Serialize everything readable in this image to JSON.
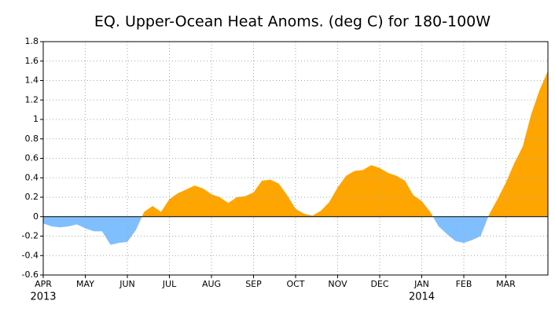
{
  "chart_data": {
    "type": "area",
    "title": "EQ. Upper-Ocean Heat Anoms. (deg C) for 180-100W",
    "x": [
      0,
      0.2,
      0.4,
      0.6,
      0.8,
      1.0,
      1.2,
      1.4,
      1.6,
      1.8,
      2.0,
      2.2,
      2.4,
      2.6,
      2.8,
      3.0,
      3.2,
      3.4,
      3.6,
      3.8,
      4.0,
      4.2,
      4.4,
      4.6,
      4.8,
      5.0,
      5.2,
      5.4,
      5.6,
      5.8,
      6.0,
      6.2,
      6.4,
      6.6,
      6.8,
      7.0,
      7.2,
      7.4,
      7.6,
      7.8,
      8.0,
      8.2,
      8.4,
      8.6,
      8.8,
      9.0,
      9.2,
      9.4,
      9.6,
      9.8,
      10.0,
      10.2,
      10.4,
      10.6,
      10.8,
      11.0,
      11.2,
      11.4,
      11.6,
      11.8,
      12.0
    ],
    "values": [
      -0.07,
      -0.1,
      -0.11,
      -0.1,
      -0.08,
      -0.12,
      -0.15,
      -0.15,
      -0.29,
      -0.27,
      -0.26,
      -0.14,
      0.05,
      0.11,
      0.05,
      0.18,
      0.24,
      0.28,
      0.32,
      0.29,
      0.23,
      0.2,
      0.14,
      0.2,
      0.21,
      0.25,
      0.37,
      0.38,
      0.34,
      0.22,
      0.08,
      0.03,
      0.01,
      0.06,
      0.15,
      0.3,
      0.42,
      0.47,
      0.48,
      0.53,
      0.5,
      0.45,
      0.42,
      0.37,
      0.22,
      0.16,
      0.05,
      -0.1,
      -0.18,
      -0.25,
      -0.27,
      -0.24,
      -0.2,
      0.02,
      0.18,
      0.35,
      0.55,
      0.72,
      1.05,
      1.3,
      1.5
    ],
    "positive_color": "#ffa500",
    "negative_color": "#80bfff",
    "xlim": [
      0,
      12
    ],
    "xticks": [
      {
        "value": 0,
        "label": "APR"
      },
      {
        "value": 1,
        "label": "MAY"
      },
      {
        "value": 2,
        "label": "JUN"
      },
      {
        "value": 3,
        "label": "JUL"
      },
      {
        "value": 4,
        "label": "AUG"
      },
      {
        "value": 5,
        "label": "SEP"
      },
      {
        "value": 6,
        "label": "OCT"
      },
      {
        "value": 7,
        "label": "NOV"
      },
      {
        "value": 8,
        "label": "DEC"
      },
      {
        "value": 9,
        "label": "JAN"
      },
      {
        "value": 10,
        "label": "FEB"
      },
      {
        "value": 11,
        "label": "MAR"
      }
    ],
    "year_labels": [
      {
        "text": "2013",
        "x": 0
      },
      {
        "text": "2014",
        "x": 9
      }
    ],
    "ylim": [
      -0.6,
      1.8
    ],
    "yticks": [
      -0.6,
      -0.4,
      -0.2,
      0,
      0.2,
      0.4,
      0.6,
      0.8,
      1,
      1.2,
      1.4,
      1.6,
      1.8
    ],
    "grid": true
  }
}
